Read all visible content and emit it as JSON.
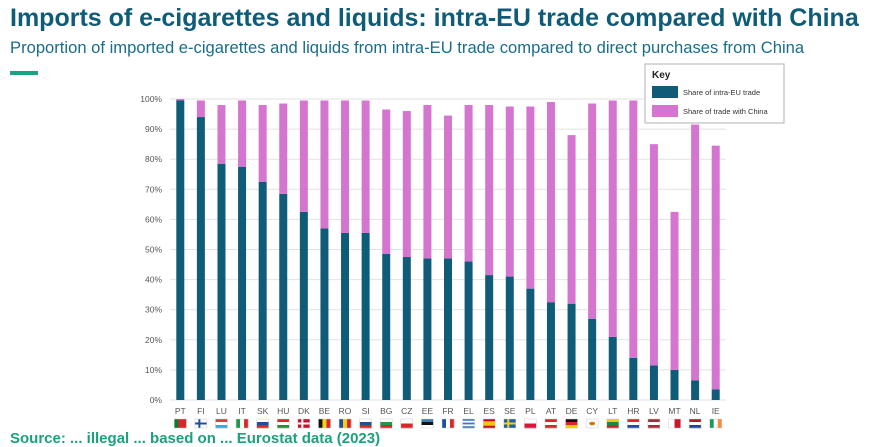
{
  "header": {
    "title": "Imports of e-cigarettes and liquids: intra-EU trade compared with China",
    "subtitle": "Proportion of imported e-cigarettes and liquids from intra-EU trade compared to direct purchases from China"
  },
  "footer": {
    "source_text": "Source: ... illegal ... based on ... Eurostat data (2023)"
  },
  "colors": {
    "intra_eu": "#0f5c78",
    "china": "#d475d0",
    "accent": "#1aa37f",
    "grid": "#e2e2e2"
  },
  "chart_data": {
    "type": "bar",
    "stacked": true,
    "title": "",
    "xlabel": "",
    "ylabel": "",
    "ylim": [
      0,
      100
    ],
    "yticks": [
      0,
      10,
      20,
      30,
      40,
      50,
      60,
      70,
      80,
      90,
      100
    ],
    "ytick_labels": [
      "0%",
      "10%",
      "20%",
      "30%",
      "40%",
      "50%",
      "60%",
      "70%",
      "80%",
      "90%",
      "100%"
    ],
    "categories": [
      "PT",
      "FI",
      "LU",
      "IT",
      "SK",
      "HU",
      "DK",
      "BE",
      "RO",
      "SI",
      "BG",
      "CZ",
      "EE",
      "FR",
      "EL",
      "ES",
      "SE",
      "PL",
      "AT",
      "DE",
      "CY",
      "LT",
      "HR",
      "LV",
      "MT",
      "NL",
      "IE"
    ],
    "series": [
      {
        "name": "Share of intra-EU trade",
        "values": [
          99.5,
          94,
          78.5,
          77.5,
          72.5,
          68.5,
          62.5,
          57,
          55.5,
          55.5,
          48.5,
          47.5,
          47,
          47,
          46,
          41.5,
          41,
          37,
          32.5,
          32,
          27,
          21,
          14,
          11.5,
          10,
          6.5,
          3.5
        ]
      },
      {
        "name": "Share of trade with China",
        "values": [
          0.5,
          5.5,
          19.5,
          22,
          25.5,
          30,
          37,
          42.5,
          44,
          44,
          48,
          48.5,
          51,
          47.5,
          52,
          56.5,
          56.5,
          60.5,
          66.5,
          56,
          71.5,
          78.5,
          85.5,
          73.5,
          52.5,
          85,
          81
        ]
      }
    ],
    "legend": {
      "title": "Key",
      "position": "top-right",
      "entries": [
        "Share of intra-EU trade",
        "Share of trade with China"
      ]
    }
  }
}
